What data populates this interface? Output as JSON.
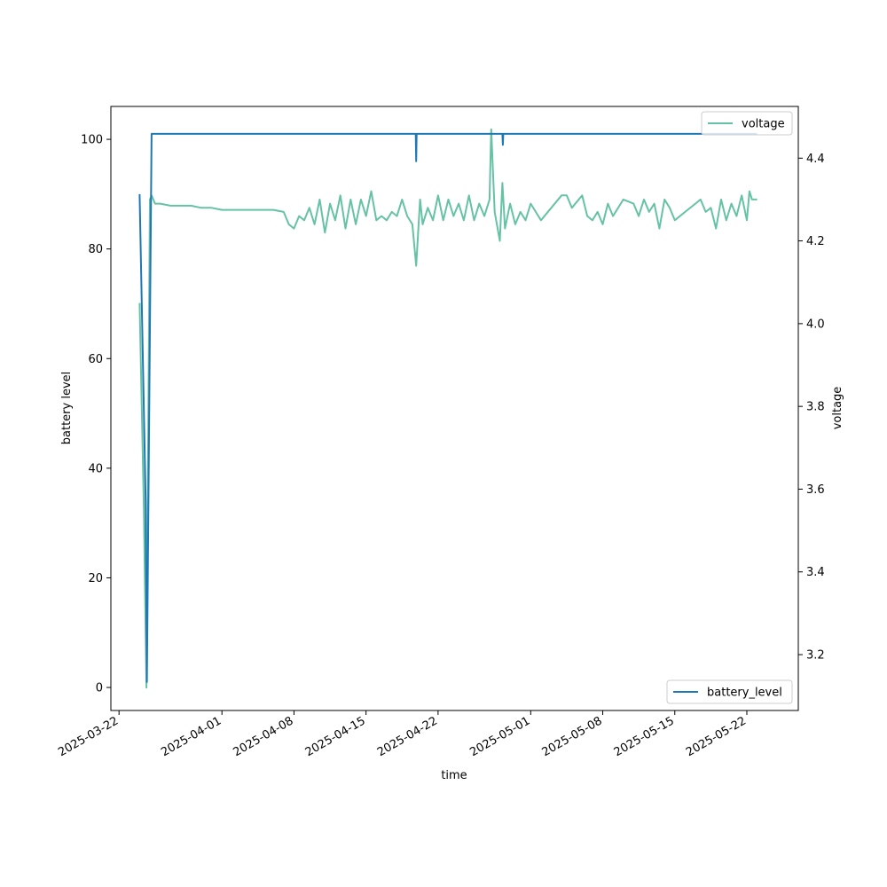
{
  "chart_data": {
    "type": "line",
    "title": "",
    "xlabel": "time",
    "ylabel": "battery level",
    "y2label": "voltage",
    "xlim": [
      "2025-03-21T05:00",
      "2025-05-27T00:00"
    ],
    "ylim": [
      -4.2,
      106.0
    ],
    "y2lim": [
      3.065,
      4.525
    ],
    "x_ticks": [
      "2025-03-22",
      "2025-04-01",
      "2025-04-08",
      "2025-04-15",
      "2025-04-22",
      "2025-05-01",
      "2025-05-08",
      "2025-05-15",
      "2025-05-22"
    ],
    "y_ticks": [
      0,
      20,
      40,
      60,
      80,
      100
    ],
    "y2_ticks": [
      3.2,
      3.4,
      3.6,
      3.8,
      4.0,
      4.2,
      4.4
    ],
    "grid": false,
    "series": [
      {
        "name": "battery_level",
        "axis": "left",
        "color": "#1f77b4",
        "legend": "lower-right",
        "x": [
          "2025-03-24T00:00",
          "2025-03-24T14:00",
          "2025-03-24T17:00",
          "2025-03-25T04:00",
          "2025-04-19T20:00",
          "2025-04-19T21:00",
          "2025-04-19T22:00",
          "2025-04-28T06:00",
          "2025-04-28T07:00",
          "2025-04-28T08:00",
          "2025-05-23T00:00"
        ],
        "values": [
          90,
          34,
          1,
          101,
          101,
          96,
          101,
          101,
          99,
          101,
          101
        ]
      },
      {
        "name": "voltage",
        "axis": "right",
        "color": "#66c2a5",
        "legend": "upper-right",
        "x": [
          "2025-03-24T00:00",
          "2025-03-24T10:00",
          "2025-03-24T16:00",
          "2025-03-25T00:00",
          "2025-03-25T04:00",
          "2025-03-25T12:00",
          "2025-03-26T00:00",
          "2025-03-27T00:00",
          "2025-03-28T00:00",
          "2025-03-29T00:00",
          "2025-03-30T00:00",
          "2025-03-31T00:00",
          "2025-04-01T00:00",
          "2025-04-02T00:00",
          "2025-04-03T00:00",
          "2025-04-04T00:00",
          "2025-04-05T00:00",
          "2025-04-06T00:00",
          "2025-04-07T00:00",
          "2025-04-07T12:00",
          "2025-04-08T00:00",
          "2025-04-08T12:00",
          "2025-04-09T00:00",
          "2025-04-09T12:00",
          "2025-04-10T00:00",
          "2025-04-10T12:00",
          "2025-04-11T00:00",
          "2025-04-11T12:00",
          "2025-04-12T00:00",
          "2025-04-12T12:00",
          "2025-04-13T00:00",
          "2025-04-13T12:00",
          "2025-04-14T00:00",
          "2025-04-14T12:00",
          "2025-04-15T00:00",
          "2025-04-15T12:00",
          "2025-04-16T00:00",
          "2025-04-16T12:00",
          "2025-04-17T00:00",
          "2025-04-17T12:00",
          "2025-04-18T00:00",
          "2025-04-18T12:00",
          "2025-04-19T00:00",
          "2025-04-19T12:00",
          "2025-04-19T21:00",
          "2025-04-20T06:00",
          "2025-04-20T12:00",
          "2025-04-21T00:00",
          "2025-04-21T12:00",
          "2025-04-22T00:00",
          "2025-04-22T12:00",
          "2025-04-23T00:00",
          "2025-04-23T12:00",
          "2025-04-24T00:00",
          "2025-04-24T12:00",
          "2025-04-25T00:00",
          "2025-04-25T12:00",
          "2025-04-26T00:00",
          "2025-04-26T12:00",
          "2025-04-27T00:00",
          "2025-04-27T04:00",
          "2025-04-27T12:00",
          "2025-04-28T00:00",
          "2025-04-28T06:00",
          "2025-04-28T12:00",
          "2025-04-29T00:00",
          "2025-04-29T12:00",
          "2025-04-30T00:00",
          "2025-04-30T12:00",
          "2025-05-01T00:00",
          "2025-05-02T00:00",
          "2025-05-03T00:00",
          "2025-05-04T00:00",
          "2025-05-04T12:00",
          "2025-05-05T00:00",
          "2025-05-06T00:00",
          "2025-05-06T12:00",
          "2025-05-07T00:00",
          "2025-05-07T12:00",
          "2025-05-08T00:00",
          "2025-05-08T12:00",
          "2025-05-09T00:00",
          "2025-05-09T12:00",
          "2025-05-10T00:00",
          "2025-05-11T00:00",
          "2025-05-11T12:00",
          "2025-05-12T00:00",
          "2025-05-12T12:00",
          "2025-05-13T00:00",
          "2025-05-13T12:00",
          "2025-05-14T00:00",
          "2025-05-14T12:00",
          "2025-05-15T00:00",
          "2025-05-16T00:00",
          "2025-05-17T00:00",
          "2025-05-17T12:00",
          "2025-05-18T00:00",
          "2025-05-18T12:00",
          "2025-05-19T00:00",
          "2025-05-19T12:00",
          "2025-05-20T00:00",
          "2025-05-20T12:00",
          "2025-05-21T00:00",
          "2025-05-21T12:00",
          "2025-05-22T00:00",
          "2025-05-22T06:00",
          "2025-05-22T12:00",
          "2025-05-23T00:00"
        ],
        "values": [
          4.05,
          3.55,
          3.12,
          4.3,
          4.31,
          4.29,
          4.29,
          4.285,
          4.285,
          4.285,
          4.28,
          4.28,
          4.275,
          4.275,
          4.275,
          4.275,
          4.275,
          4.275,
          4.27,
          4.24,
          4.23,
          4.26,
          4.25,
          4.28,
          4.24,
          4.3,
          4.22,
          4.29,
          4.25,
          4.31,
          4.23,
          4.3,
          4.24,
          4.3,
          4.26,
          4.32,
          4.25,
          4.26,
          4.25,
          4.27,
          4.26,
          4.3,
          4.26,
          4.24,
          4.14,
          4.3,
          4.24,
          4.28,
          4.25,
          4.31,
          4.25,
          4.3,
          4.26,
          4.29,
          4.25,
          4.31,
          4.25,
          4.29,
          4.26,
          4.3,
          4.47,
          4.27,
          4.2,
          4.34,
          4.23,
          4.29,
          4.24,
          4.27,
          4.25,
          4.29,
          4.25,
          4.28,
          4.31,
          4.31,
          4.28,
          4.31,
          4.26,
          4.25,
          4.27,
          4.24,
          4.29,
          4.26,
          4.28,
          4.3,
          4.29,
          4.26,
          4.3,
          4.27,
          4.29,
          4.23,
          4.3,
          4.28,
          4.25,
          4.27,
          4.29,
          4.3,
          4.27,
          4.28,
          4.23,
          4.3,
          4.25,
          4.29,
          4.26,
          4.31,
          4.25,
          4.32,
          4.3,
          4.3
        ]
      }
    ]
  }
}
